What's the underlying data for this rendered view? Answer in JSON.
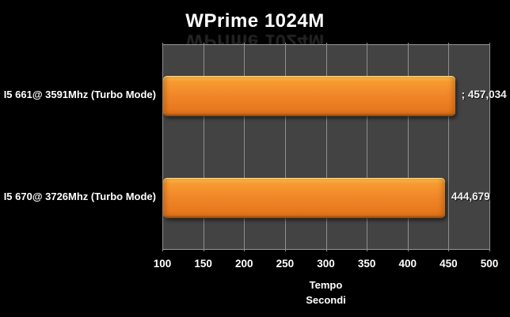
{
  "chart_data": {
    "type": "bar",
    "orientation": "horizontal",
    "title": "WPrime 1024M",
    "categories": [
      "I5 661@ 3591Mhz (Turbo Mode)",
      "I5 670@ 3726Mhz (Turbo Mode)"
    ],
    "values": [
      457.034,
      444.679
    ],
    "value_labels": [
      "; 457,034",
      "444,679"
    ],
    "xlabel": "Tempo Secondi",
    "xlabel_lines": [
      "Tempo",
      "Secondi"
    ],
    "xlim": [
      100,
      500
    ],
    "xticks": [
      100,
      150,
      200,
      250,
      300,
      350,
      400,
      450,
      500
    ],
    "grid": "vertical",
    "legend": "none",
    "lower_is_better": true,
    "colors": {
      "background": "#000000",
      "plot_bg": "#434343",
      "gridline": "#8F8F8F",
      "text": "#FFFFFF",
      "bar_highlight": "#FDC856",
      "bar_main": "#F1882A",
      "bar_shadow": "#DD6F19"
    }
  }
}
